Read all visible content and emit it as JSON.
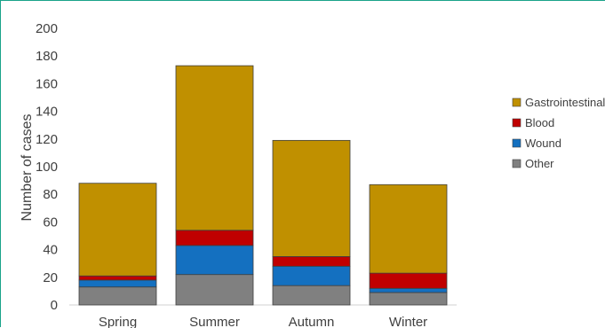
{
  "chart_data": {
    "type": "bar",
    "stacked": true,
    "categories": [
      "Spring",
      "Summer",
      "Autumn",
      "Winter"
    ],
    "series": [
      {
        "name": "Other",
        "values": [
          13,
          22,
          14,
          9
        ],
        "color": "#808080"
      },
      {
        "name": "Wound",
        "values": [
          5,
          21,
          14,
          3
        ],
        "color": "#1470c0"
      },
      {
        "name": "Blood",
        "values": [
          3,
          11,
          7,
          11
        ],
        "color": "#c00000"
      },
      {
        "name": "Gastrointestinal",
        "values": [
          67,
          119,
          84,
          64
        ],
        "color": "#c09000"
      }
    ],
    "legend_order": [
      "Gastrointestinal",
      "Blood",
      "Wound",
      "Other"
    ],
    "ylabel": "Number of cases",
    "ylim": [
      0,
      200
    ],
    "yticks": [
      0,
      20,
      40,
      60,
      80,
      100,
      120,
      140,
      160,
      180,
      200
    ],
    "grid": false,
    "legend_position": "right"
  }
}
